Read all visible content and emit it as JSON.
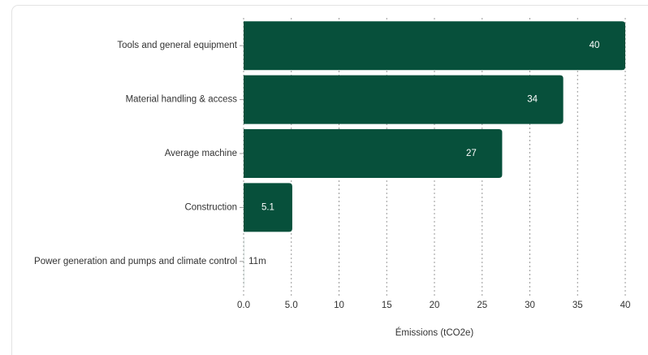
{
  "chart_data": {
    "type": "hbar",
    "x_label": "Émissions (tCO2e)",
    "categories": [
      "Tools and general equipment",
      "Material handling & access",
      "Average machine",
      "Construction",
      "Power generation and pumps and climate control"
    ],
    "values": [
      40,
      33.5,
      27.1,
      5.1,
      0.011
    ],
    "value_labels": [
      "40",
      "34",
      "27",
      "5.1",
      "11m"
    ],
    "color": "#07503b",
    "xlim": [
      0,
      40
    ],
    "xticks": [
      {
        "value": 0,
        "label": "0.0"
      },
      {
        "value": 5,
        "label": "5.0"
      },
      10,
      15,
      20,
      25,
      30,
      35,
      40
    ],
    "grid": true
  }
}
